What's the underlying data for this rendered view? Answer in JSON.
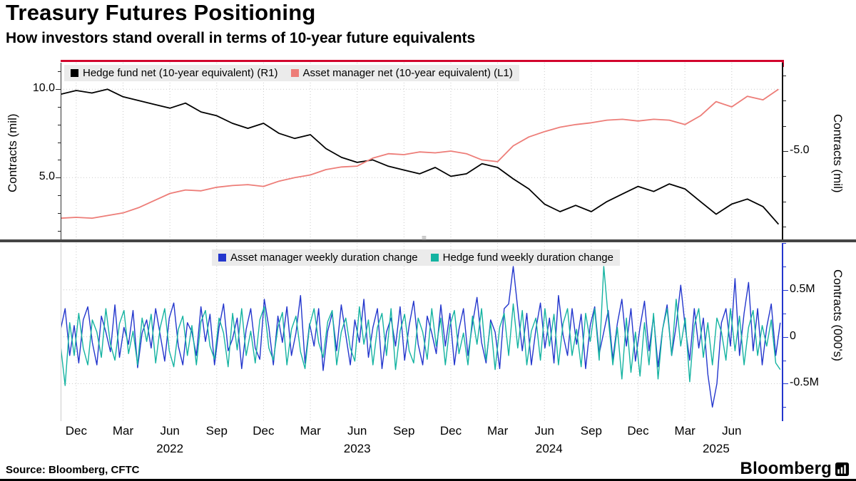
{
  "header": {
    "title": "Treasury Futures Positioning",
    "subtitle": "How investors stand overall in terms of 10-year future equivalents"
  },
  "footer": {
    "source": "Source: Bloomberg, CFTC",
    "brand": "Bloomberg"
  },
  "colors": {
    "top_border": "#d2042d",
    "grid": "#c9c9c9",
    "legend_bg": "#ebebeb",
    "divider": "#454545"
  },
  "x_axis": {
    "unit": "months since Nov 2021",
    "range": [
      0,
      46.3
    ],
    "month_ticks": [
      {
        "pos": 1,
        "label": "Dec"
      },
      {
        "pos": 4,
        "label": "Mar"
      },
      {
        "pos": 7,
        "label": "Jun"
      },
      {
        "pos": 10,
        "label": "Sep"
      },
      {
        "pos": 13,
        "label": "Dec"
      },
      {
        "pos": 16,
        "label": "Mar"
      },
      {
        "pos": 19,
        "label": "Jun"
      },
      {
        "pos": 22,
        "label": "Sep"
      },
      {
        "pos": 25,
        "label": "Dec"
      },
      {
        "pos": 28,
        "label": "Mar"
      },
      {
        "pos": 31,
        "label": "Jun"
      },
      {
        "pos": 34,
        "label": "Sep"
      },
      {
        "pos": 37,
        "label": "Dec"
      },
      {
        "pos": 40,
        "label": "Mar"
      },
      {
        "pos": 43,
        "label": "Jun"
      }
    ],
    "year_ticks": [
      {
        "pos": 7,
        "label": "2022"
      },
      {
        "pos": 19,
        "label": "2023"
      },
      {
        "pos": 31.3,
        "label": "2024"
      },
      {
        "pos": 42,
        "label": "2025"
      }
    ]
  },
  "chart_data": [
    {
      "type": "line",
      "name": "net-positioning-panel",
      "grid_on": "left",
      "spines": {
        "left": "#333333",
        "right": "#111111"
      },
      "left_axis": {
        "label": "Contracts (mil)",
        "range": [
          1.5,
          11.5
        ],
        "minor_step": 1,
        "ticks": [
          {
            "v": 10,
            "label": "10.0"
          },
          {
            "v": 5,
            "label": "5.0"
          }
        ]
      },
      "right_axis": {
        "label": "Contracts (mil)",
        "range": [
          -8.5,
          -1.5
        ],
        "minor_step": 1,
        "ticks": [
          {
            "v": -5,
            "label": "-5.0"
          }
        ]
      },
      "series": [
        {
          "name": "Hedge fund net (10-year equivalent) (R1)",
          "axis": "right",
          "color": "#000000",
          "x_start": 0,
          "x_step": 1,
          "values": [
            -2.75,
            -2.6,
            -2.7,
            -2.55,
            -2.85,
            -3.0,
            -3.15,
            -3.3,
            -3.1,
            -3.45,
            -3.6,
            -3.9,
            -4.1,
            -3.9,
            -4.3,
            -4.5,
            -4.35,
            -4.9,
            -5.25,
            -5.45,
            -5.35,
            -5.6,
            -5.75,
            -5.9,
            -5.65,
            -6.0,
            -5.9,
            -5.5,
            -5.65,
            -6.1,
            -6.5,
            -7.1,
            -7.4,
            -7.15,
            -7.4,
            -7.0,
            -6.7,
            -6.4,
            -6.6,
            -6.3,
            -6.5,
            -7.0,
            -7.5,
            -7.1,
            -6.9,
            -7.2,
            -7.9
          ]
        },
        {
          "name": "Asset manager net (10-year equivalent) (L1)",
          "axis": "left",
          "color": "#ed7d78",
          "x_start": 0,
          "x_step": 1,
          "values": [
            2.7,
            2.75,
            2.7,
            2.85,
            3.0,
            3.3,
            3.7,
            4.1,
            4.3,
            4.25,
            4.45,
            4.55,
            4.6,
            4.5,
            4.8,
            5.0,
            5.15,
            5.45,
            5.6,
            5.65,
            6.1,
            6.35,
            6.3,
            6.45,
            6.4,
            6.5,
            6.35,
            6.0,
            5.9,
            6.8,
            7.3,
            7.6,
            7.85,
            8.0,
            8.1,
            8.25,
            8.3,
            8.2,
            8.3,
            8.25,
            8.0,
            8.5,
            9.3,
            9.0,
            9.6,
            9.4,
            10.0
          ]
        }
      ]
    },
    {
      "type": "line",
      "name": "weekly-duration-change-panel",
      "grid_on": "right",
      "spines": {
        "left": "#cccccc",
        "right": "#2336cd"
      },
      "right_axis": {
        "label": "Contracts (000's)",
        "range": [
          -0.9,
          1.0
        ],
        "minor_step": 0.25,
        "tick_color": "#2336cd",
        "ticks": [
          {
            "v": 0.5,
            "label": "0.5M"
          },
          {
            "v": 0,
            "label": "0"
          },
          {
            "v": -0.5,
            "label": "-0.5M"
          }
        ]
      },
      "series": [
        {
          "name": "Asset manager weekly duration change",
          "axis": "right",
          "color": "#2336cd",
          "x_start": 0,
          "x_step": 0.29,
          "values": [
            0.08,
            0.3,
            -0.2,
            0.12,
            -0.28,
            0.18,
            0.32,
            -0.06,
            -0.3,
            0.22,
            0.05,
            -0.16,
            0.34,
            -0.22,
            0.1,
            -0.08,
            0.28,
            -0.33,
            0.04,
            0.18,
            -0.12,
            0.3,
            0.02,
            -0.26,
            0.2,
            0.36,
            -0.1,
            -0.3,
            0.15,
            0.05,
            -0.2,
            0.32,
            -0.05,
            0.24,
            -0.3,
            0.1,
            0.35,
            -0.15,
            -0.02,
            0.2,
            -0.34,
            0.08,
            0.3,
            -0.12,
            -0.24,
            0.4,
            0.1,
            -0.3,
            0.22,
            -0.06,
            0.32,
            -0.2,
            0.04,
            0.44,
            -0.28,
            0.14,
            -0.1,
            0.3,
            -0.36,
            0.06,
            0.25,
            -0.15,
            0.34,
            0.02,
            -0.3,
            0.18,
            -0.06,
            0.4,
            -0.22,
            0.1,
            0.3,
            -0.34,
            0.05,
            0.2,
            -0.1,
            0.32,
            -0.25,
            0.12,
            0.38,
            -0.08,
            -0.3,
            0.22,
            0.04,
            -0.18,
            0.34,
            -0.1,
            0.25,
            -0.3,
            0.08,
            0.3,
            -0.2,
            0.14,
            0.42,
            -0.06,
            -0.28,
            0.18,
            0.05,
            -0.34,
            0.3,
            0.35,
            0.75,
            0.3,
            -0.15,
            0.25,
            -0.3,
            0.08,
            0.36,
            -0.12,
            0.2,
            -0.28,
            0.44,
            0.02,
            -0.2,
            0.3,
            -0.08,
            0.24,
            -0.34,
            0.12,
            0.32,
            -0.18,
            0.05,
            0.28,
            -0.24,
            0.14,
            0.4,
            -0.1,
            0.3,
            -0.26,
            0.1,
            0.38,
            -0.15,
            0.22,
            -0.32,
            0.08,
            0.34,
            -0.2,
            0.12,
            0.55,
            0.1,
            -0.25,
            0.3,
            -0.12,
            0.2,
            -0.4,
            -0.75,
            -0.5,
            0.15,
            0.3,
            -0.1,
            0.62,
            -0.2,
            0.25,
            0.58,
            -0.15,
            0.3,
            -0.3,
            0.1,
            0.35,
            -0.2,
            0.15
          ]
        },
        {
          "name": "Hedge fund weekly duration change",
          "axis": "right",
          "color": "#14b3a1",
          "x_start": 0,
          "x_step": 0.29,
          "values": [
            -0.1,
            -0.52,
            0.15,
            -0.2,
            0.25,
            -0.12,
            -0.3,
            0.18,
            0.05,
            -0.22,
            0.3,
            -0.08,
            -0.25,
            0.14,
            0.28,
            -0.18,
            0.06,
            -0.3,
            0.2,
            -0.05,
            0.24,
            -0.28,
            0.1,
            0.3,
            -0.15,
            -0.32,
            0.08,
            0.22,
            -0.2,
            0.12,
            -0.3,
            0.16,
            0.28,
            -0.1,
            -0.24,
            0.2,
            0.04,
            -0.32,
            0.25,
            -0.14,
            0.3,
            -0.2,
            0.06,
            -0.28,
            0.18,
            0.32,
            -0.12,
            -0.25,
            0.1,
            0.26,
            -0.3,
            0.08,
            0.22,
            -0.16,
            -0.34,
            0.12,
            0.3,
            -0.06,
            -0.22,
            0.16,
            0.28,
            -0.3,
            0.05,
            0.2,
            -0.12,
            -0.26,
            0.32,
            -0.08,
            0.18,
            -0.3,
            0.1,
            0.25,
            -0.2,
            0.3,
            -0.35,
            0.06,
            0.24,
            -0.15,
            -0.28,
            0.2,
            0.05,
            -0.24,
            0.3,
            -0.1,
            0.2,
            -0.3,
            0.12,
            0.28,
            -0.18,
            0.04,
            -0.3,
            0.22,
            -0.08,
            0.3,
            -0.25,
            0.15,
            -0.35,
            0.1,
            0.25,
            -0.2,
            0.35,
            -0.12,
            0.28,
            -0.3,
            0.06,
            0.2,
            -0.25,
            0.3,
            -0.1,
            0.24,
            -0.3,
            0.14,
            0.3,
            -0.2,
            0.08,
            -0.32,
            0.25,
            -0.05,
            0.3,
            -0.25,
            0.75,
            0.2,
            -0.3,
            0.1,
            -0.45,
            0.2,
            -0.38,
            0.05,
            -0.42,
            0.15,
            -0.3,
            0.25,
            -0.45,
            0.08,
            0.3,
            -0.2,
            0.4,
            -0.1,
            0.2,
            -0.48,
            0.12,
            0.3,
            -0.22,
            0.15,
            -0.3,
            0.2,
            0.05,
            -0.25,
            0.3,
            -0.15,
            0.22,
            -0.3,
            0.1,
            0.28,
            -0.2,
            0.12,
            -0.1,
            0.18,
            -0.28,
            -0.35
          ]
        }
      ]
    }
  ]
}
